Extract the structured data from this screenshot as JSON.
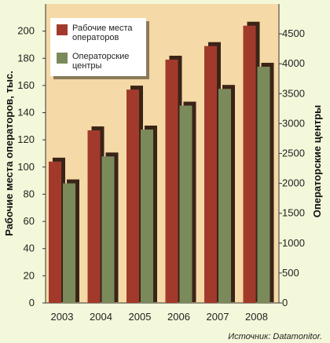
{
  "colors": {
    "page_background": "#f4f8da",
    "plot_background": "#f5d9a6",
    "series_workplaces": "#a23a2c",
    "series_centers": "#7a8a5a",
    "shadow": "#3a2418",
    "legend_background": "#ffffff"
  },
  "chart_data": {
    "type": "bar",
    "title": "",
    "categories": [
      "2003",
      "2004",
      "2005",
      "2006",
      "2007",
      "2008"
    ],
    "series": [
      {
        "name": "Рабочие места операторов",
        "axis": "left",
        "values": [
          104,
          127,
          157,
          179,
          189,
          204
        ]
      },
      {
        "name": "Операторские центры",
        "axis": "right",
        "values": [
          2000,
          2450,
          2900,
          3300,
          3580,
          3950
        ]
      }
    ],
    "ylabel": "Рабочие места операторов, тыс.",
    "ylim": [
      0,
      220
    ],
    "yticks": [
      "0",
      "20",
      "40",
      "60",
      "80",
      "100",
      "120",
      "140",
      "160",
      "180",
      "200"
    ],
    "y2label": "Операторские центры",
    "y2lim": [
      0,
      5000
    ],
    "y2ticks": [
      "0",
      "500",
      "1000",
      "1500",
      "2000",
      "2500",
      "3000",
      "3500",
      "4000",
      "4500"
    ],
    "grid": false,
    "legend": {
      "placement": "top-left",
      "items": [
        {
          "lines": [
            "Рабочие места",
            "операторов"
          ]
        },
        {
          "lines": [
            "Операторские",
            "центры"
          ]
        }
      ]
    },
    "source_note": "Источник: Datamonitor."
  }
}
